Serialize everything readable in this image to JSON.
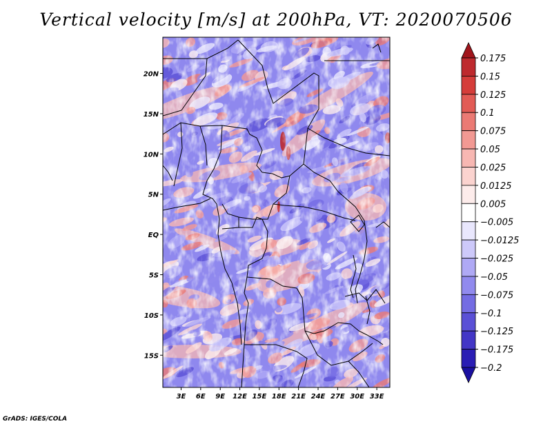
{
  "chart_data": {
    "type": "heatmap",
    "title": "Vertical velocity [m/s] at 200hPa, VT: 2020070506",
    "credit": "GrADS: IGES/COLA",
    "xlabel": "",
    "ylabel": "",
    "x_ticks": [
      "3E",
      "6E",
      "9E",
      "12E",
      "15E",
      "18E",
      "21E",
      "24E",
      "27E",
      "30E",
      "33E"
    ],
    "x_tick_values": [
      3,
      6,
      9,
      12,
      15,
      18,
      21,
      24,
      27,
      30,
      33
    ],
    "y_ticks": [
      "20N",
      "15N",
      "10N",
      "5N",
      "EQ",
      "5S",
      "10S",
      "15S"
    ],
    "y_tick_values": [
      20,
      15,
      10,
      5,
      0,
      -5,
      -10,
      -15
    ],
    "xlim": [
      0.2,
      35
    ],
    "ylim": [
      -19,
      24.5
    ],
    "colorbar": {
      "levels": [
        "0.175",
        "0.15",
        "0.125",
        "0.1",
        "0.075",
        "0.05",
        "0.025",
        "0.0125",
        "0.005",
        "−0.005",
        "−0.0125",
        "−0.025",
        "−0.05",
        "−0.075",
        "−0.1",
        "−0.125",
        "−0.175",
        "−0.2"
      ],
      "colors": [
        "#a1151c",
        "#be2a2e",
        "#d53d3a",
        "#e25b55",
        "#eb7a74",
        "#f29993",
        "#f7b7b2",
        "#fbd3cf",
        "#fdeceb",
        "#ffffff",
        "#e9e7fd",
        "#cdc9fa",
        "#afa9f5",
        "#918aee",
        "#746ce3",
        "#5a50d6",
        "#4336c6",
        "#2a1db4",
        "#1a0fa0"
      ]
    }
  }
}
